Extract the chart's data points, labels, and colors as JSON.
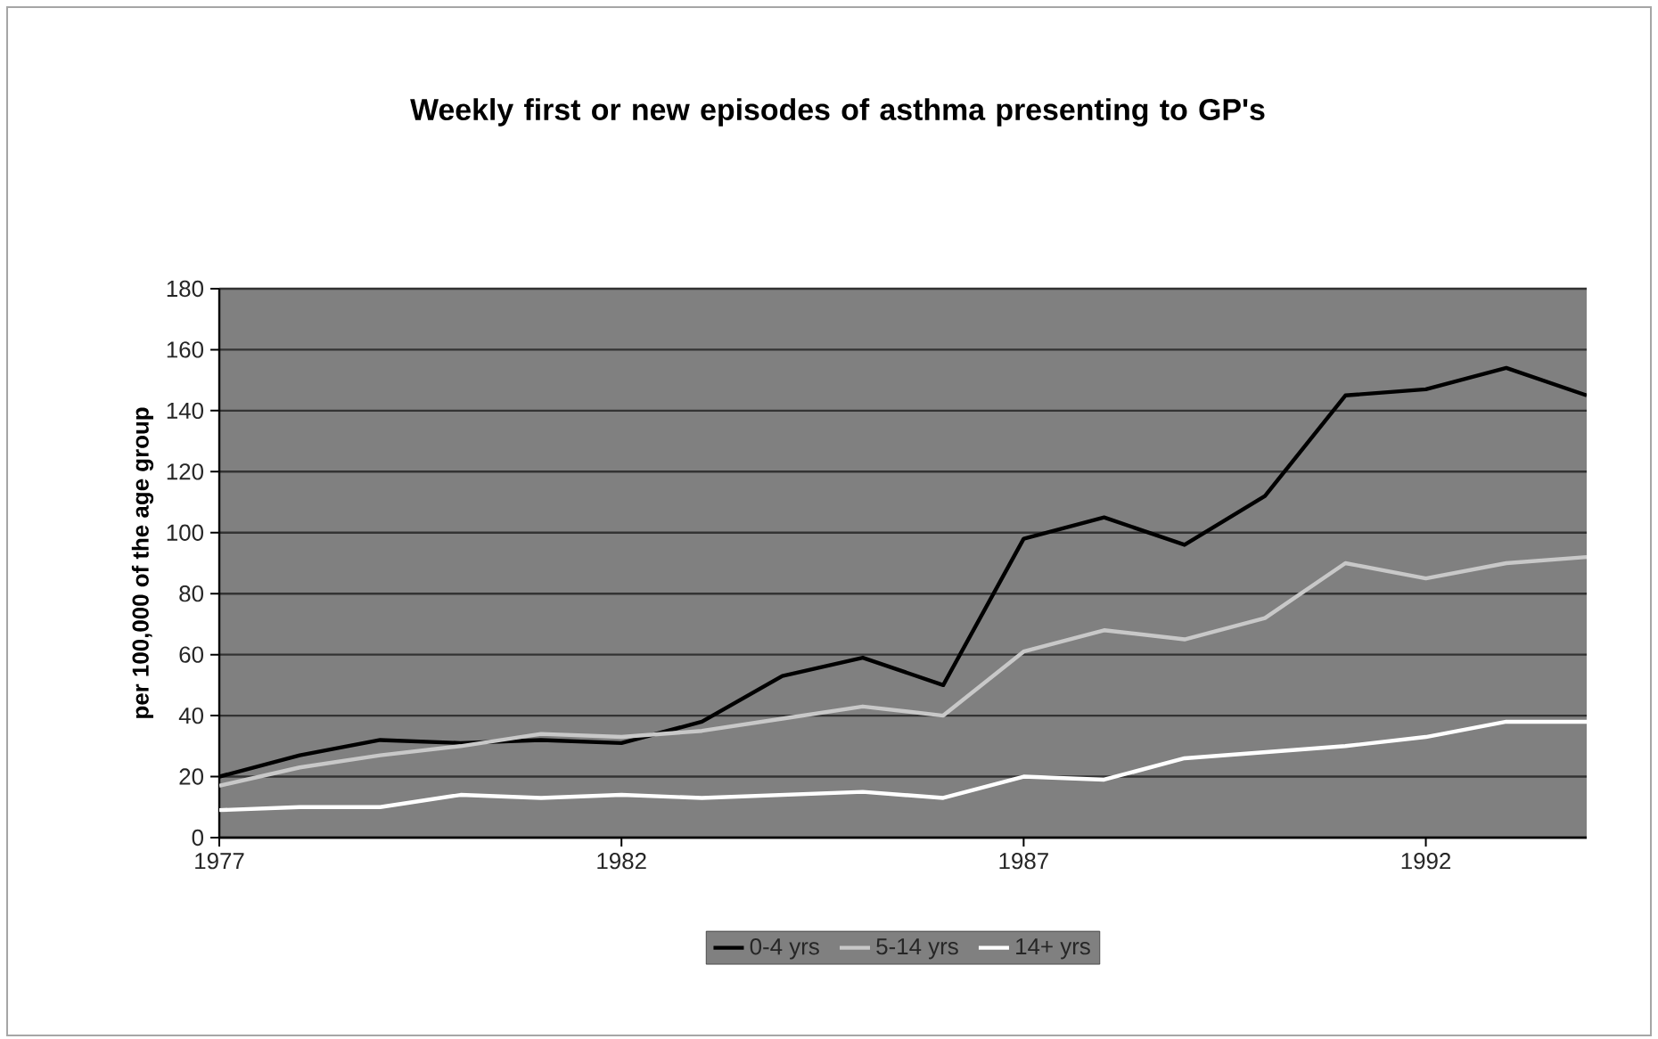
{
  "chart_data": {
    "type": "line",
    "title": "Weekly first or new episodes of asthma presenting to GP's",
    "ylabel": "per 100,000 of the age group",
    "x": [
      1977,
      1978,
      1979,
      1980,
      1981,
      1982,
      1983,
      1984,
      1985,
      1986,
      1987,
      1988,
      1989,
      1990,
      1991,
      1992,
      1993,
      1994
    ],
    "series": [
      {
        "name": "0-4 yrs",
        "color": "#000000",
        "values": [
          20,
          27,
          32,
          31,
          32,
          31,
          38,
          53,
          59,
          50,
          98,
          105,
          96,
          112,
          145,
          147,
          154,
          145
        ]
      },
      {
        "name": "5-14 yrs",
        "color": "#c8c8c8",
        "values": [
          17,
          23,
          27,
          30,
          34,
          33,
          35,
          39,
          43,
          40,
          61,
          68,
          65,
          72,
          90,
          85,
          90,
          92
        ]
      },
      {
        "name": "14+ yrs",
        "color": "#ffffff",
        "values": [
          9,
          10,
          10,
          14,
          13,
          14,
          13,
          14,
          15,
          13,
          20,
          19,
          26,
          28,
          30,
          33,
          38,
          38
        ]
      }
    ],
    "xlim": [
      1977,
      1994
    ],
    "xticks": [
      1977,
      1982,
      1987,
      1992
    ],
    "ylim": [
      0,
      180
    ],
    "yticks": [
      0,
      20,
      40,
      60,
      80,
      100,
      120,
      140,
      160,
      180
    ],
    "grid": "y",
    "legend": "bottom"
  }
}
